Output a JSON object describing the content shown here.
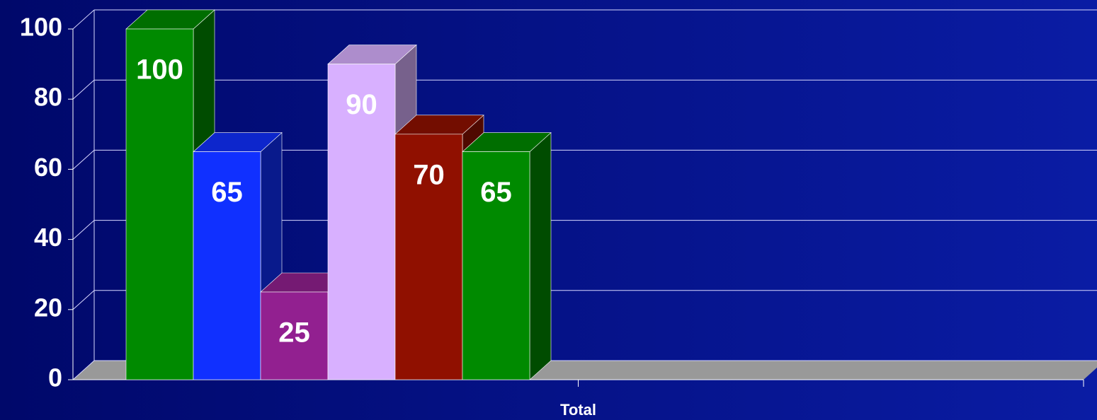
{
  "chart_data": {
    "type": "bar3d",
    "categories": [
      "Total"
    ],
    "series": [
      {
        "color": "#008a00",
        "values": [
          100
        ]
      },
      {
        "color": "#1030ff",
        "values": [
          65
        ]
      },
      {
        "color": "#922090",
        "values": [
          25
        ]
      },
      {
        "color": "#d8b0ff",
        "values": [
          90
        ]
      },
      {
        "color": "#901000",
        "values": [
          70
        ]
      },
      {
        "color": "#008a00",
        "values": [
          65
        ]
      }
    ],
    "ylim": [
      0,
      100
    ],
    "yticks": [
      0,
      20,
      40,
      60,
      80,
      100
    ],
    "grid": true
  }
}
